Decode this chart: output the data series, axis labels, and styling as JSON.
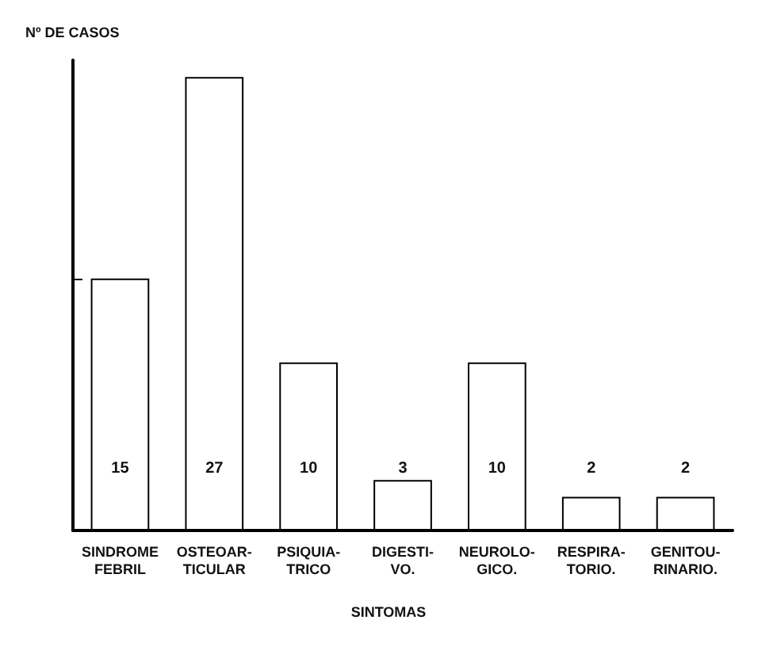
{
  "chart_data": {
    "type": "bar",
    "ylabel": "Nº DE CASOS",
    "xlabel": "SINTOMAS",
    "categories": [
      "SINDROME\nFEBRIL",
      "OSTEOAR-\nTICULAR",
      "PSIQUIA-\nTRICO",
      "DIGESTI-\nVO.",
      "NEUROLO-\nGICO.",
      "RESPIRA-\nTORIO.",
      "GENITOU-\nRINARIO."
    ],
    "values": [
      15,
      27,
      10,
      3,
      10,
      2,
      2
    ],
    "color": "#ffffff",
    "data_labels": true,
    "grid": false,
    "ylim": [
      0,
      28
    ],
    "yticks": [
      {
        "value": 15,
        "label": null
      }
    ]
  }
}
